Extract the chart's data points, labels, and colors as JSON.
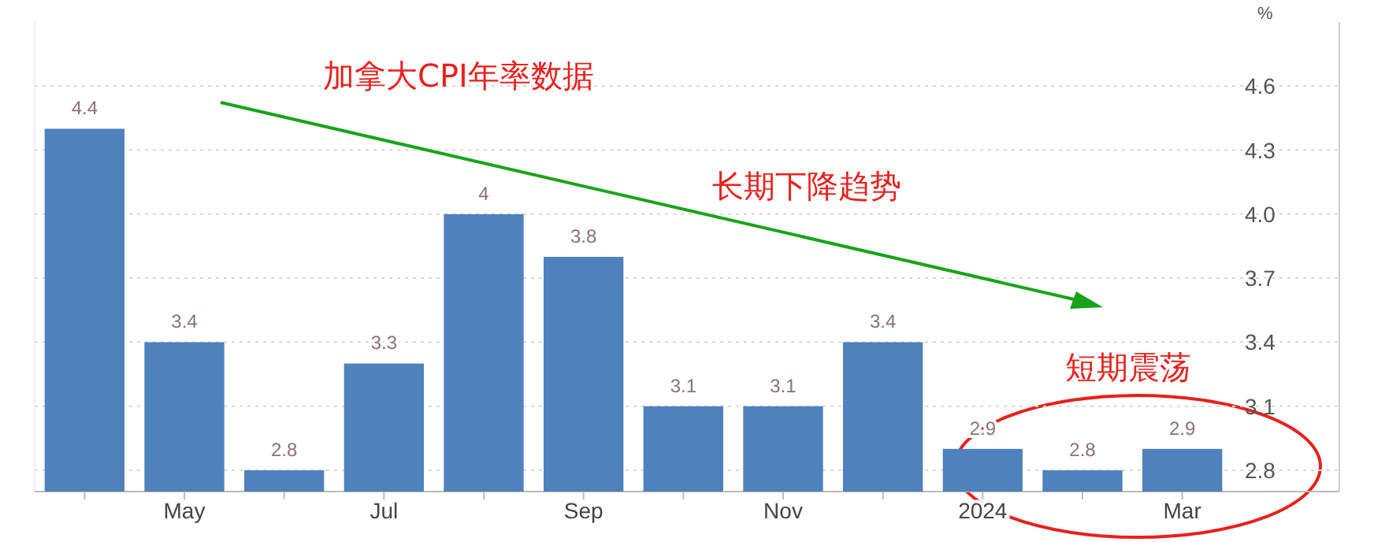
{
  "chart_data": {
    "type": "bar",
    "ylabel": "%",
    "categories": [
      null,
      "May",
      null,
      "Jul",
      null,
      "Sep",
      null,
      "Nov",
      null,
      "2024",
      null,
      "Mar"
    ],
    "values": [
      4.4,
      3.4,
      2.8,
      3.3,
      4,
      3.8,
      3.1,
      3.1,
      3.4,
      2.9,
      2.8,
      2.9
    ],
    "color": "#4f81bd",
    "data_labels": true,
    "grid": "y",
    "ylim": [
      2.7,
      4.9
    ],
    "yticks": [
      2.8,
      3.1,
      3.4,
      3.7,
      {
        "value": 4,
        "label": "4.0"
      },
      4.3,
      4.6
    ],
    "annotations": [
      "加拿大CPI年率数据",
      "长期下降趋势",
      "短期震荡"
    ]
  }
}
